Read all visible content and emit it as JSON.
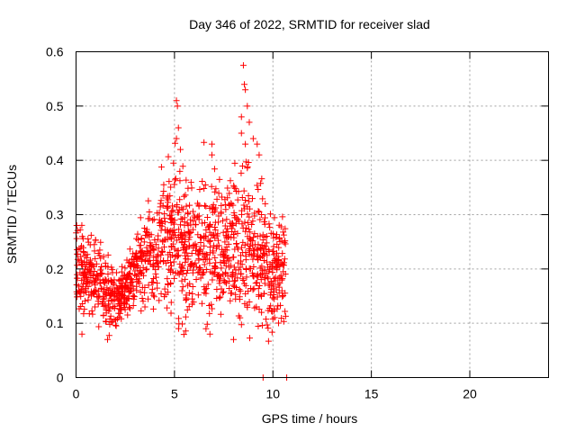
{
  "chart_data": {
    "type": "scatter",
    "title": "Day 346 of 2022, SRMTID for receiver slad",
    "xlabel": "GPS time / hours",
    "ylabel": "SRMTID / TECUs",
    "xlim": [
      0,
      24
    ],
    "ylim": [
      0,
      0.6
    ],
    "xticks": [
      "0",
      "5",
      "10",
      "15",
      "20"
    ],
    "xtick_values": [
      0,
      5,
      10,
      15,
      20
    ],
    "yticks": [
      "0",
      "0.1",
      "0.2",
      "0.3",
      "0.4",
      "0.5",
      "0.6"
    ],
    "ytick_values": [
      0,
      0.1,
      0.2,
      0.3,
      0.4,
      0.5,
      0.6
    ],
    "grid": true,
    "marker": "+",
    "color": "#ff0000",
    "series": [
      {
        "name": "SRMTID",
        "profile": [
          {
            "x": 0.0,
            "lo": 0.12,
            "hi": 0.27
          },
          {
            "x": 0.5,
            "lo": 0.11,
            "hi": 0.26
          },
          {
            "x": 1.0,
            "lo": 0.12,
            "hi": 0.26
          },
          {
            "x": 1.5,
            "lo": 0.08,
            "hi": 0.22
          },
          {
            "x": 2.0,
            "lo": 0.1,
            "hi": 0.19
          },
          {
            "x": 2.5,
            "lo": 0.12,
            "hi": 0.22
          },
          {
            "x": 3.0,
            "lo": 0.13,
            "hi": 0.25
          },
          {
            "x": 3.5,
            "lo": 0.15,
            "hi": 0.3
          },
          {
            "x": 4.0,
            "lo": 0.14,
            "hi": 0.33
          },
          {
            "x": 4.5,
            "lo": 0.15,
            "hi": 0.37
          },
          {
            "x": 5.0,
            "lo": 0.13,
            "hi": 0.4
          },
          {
            "x": 5.5,
            "lo": 0.1,
            "hi": 0.37
          },
          {
            "x": 6.0,
            "lo": 0.13,
            "hi": 0.33
          },
          {
            "x": 6.5,
            "lo": 0.11,
            "hi": 0.39
          },
          {
            "x": 7.0,
            "lo": 0.15,
            "hi": 0.37
          },
          {
            "x": 7.5,
            "lo": 0.12,
            "hi": 0.34
          },
          {
            "x": 8.0,
            "lo": 0.12,
            "hi": 0.38
          },
          {
            "x": 8.5,
            "lo": 0.09,
            "hi": 0.42
          },
          {
            "x": 9.0,
            "lo": 0.1,
            "hi": 0.38
          },
          {
            "x": 9.5,
            "lo": 0.1,
            "hi": 0.34
          },
          {
            "x": 10.0,
            "lo": 0.09,
            "hi": 0.28
          },
          {
            "x": 10.5,
            "lo": 0.12,
            "hi": 0.28
          }
        ],
        "outliers": [
          {
            "x": 0.3,
            "y": 0.08
          },
          {
            "x": 1.6,
            "y": 0.07
          },
          {
            "x": 5.1,
            "y": 0.51
          },
          {
            "x": 5.15,
            "y": 0.5
          },
          {
            "x": 5.2,
            "y": 0.46
          },
          {
            "x": 5.1,
            "y": 0.44
          },
          {
            "x": 5.3,
            "y": 0.42
          },
          {
            "x": 6.6,
            "y": 0.09
          },
          {
            "x": 6.9,
            "y": 0.41
          },
          {
            "x": 6.9,
            "y": 0.43
          },
          {
            "x": 6.8,
            "y": 0.08
          },
          {
            "x": 8.0,
            "y": 0.07
          },
          {
            "x": 8.5,
            "y": 0.575
          },
          {
            "x": 8.55,
            "y": 0.54
          },
          {
            "x": 8.6,
            "y": 0.53
          },
          {
            "x": 8.4,
            "y": 0.48
          },
          {
            "x": 8.7,
            "y": 0.5
          },
          {
            "x": 8.8,
            "y": 0.47
          },
          {
            "x": 8.4,
            "y": 0.45
          },
          {
            "x": 8.6,
            "y": 0.43
          },
          {
            "x": 9.0,
            "y": 0.44
          },
          {
            "x": 9.2,
            "y": 0.43
          },
          {
            "x": 9.3,
            "y": 0.41
          },
          {
            "x": 10.7,
            "y": 0.0
          },
          {
            "x": 9.5,
            "y": 0.0
          }
        ],
        "count": 1300
      }
    ]
  }
}
